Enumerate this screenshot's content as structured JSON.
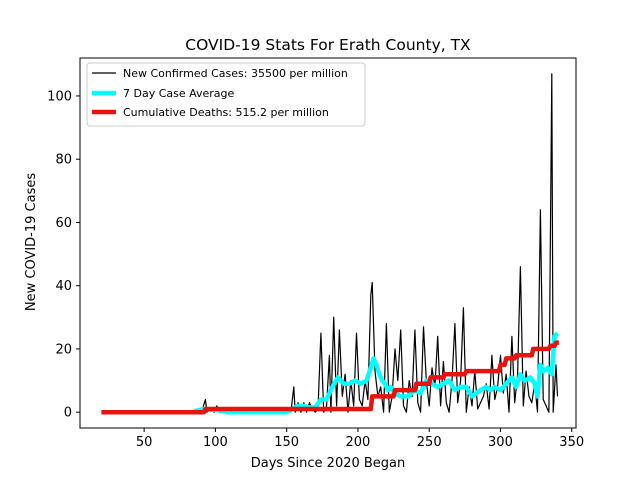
{
  "chart_data": {
    "type": "line",
    "title": "COVID-19 Stats For Erath County, TX",
    "xlabel": "Days Since 2020 Began",
    "ylabel": "New COVID-19 Cases",
    "xlim": [
      5,
      353
    ],
    "ylim": [
      -5,
      112
    ],
    "xticks": [
      50,
      100,
      150,
      200,
      250,
      300,
      350
    ],
    "yticks": [
      0,
      20,
      40,
      60,
      80,
      100
    ],
    "legend_position": "top-left",
    "grid": false,
    "series": [
      {
        "name": "New Confirmed Cases: 35500 per million",
        "color": "#000000",
        "line_width": 1.2,
        "points": [
          [
            20,
            0
          ],
          [
            85,
            0
          ],
          [
            87,
            1
          ],
          [
            89,
            0
          ],
          [
            90,
            0
          ],
          [
            91,
            1
          ],
          [
            93,
            4
          ],
          [
            94,
            0
          ],
          [
            97,
            1
          ],
          [
            99,
            0
          ],
          [
            101,
            2
          ],
          [
            103,
            0
          ],
          [
            107,
            0
          ],
          [
            109,
            1
          ],
          [
            111,
            0
          ],
          [
            114,
            1
          ],
          [
            116,
            0
          ],
          [
            150,
            0
          ],
          [
            153,
            0
          ],
          [
            155,
            8
          ],
          [
            156,
            0
          ],
          [
            158,
            3
          ],
          [
            160,
            0
          ],
          [
            162,
            3
          ],
          [
            164,
            0
          ],
          [
            166,
            3
          ],
          [
            168,
            1
          ],
          [
            170,
            0
          ],
          [
            172,
            1
          ],
          [
            174,
            25
          ],
          [
            176,
            0
          ],
          [
            178,
            2
          ],
          [
            180,
            18
          ],
          [
            181,
            0
          ],
          [
            183,
            30
          ],
          [
            185,
            2
          ],
          [
            187,
            26
          ],
          [
            189,
            5
          ],
          [
            191,
            12
          ],
          [
            193,
            0
          ],
          [
            195,
            10
          ],
          [
            197,
            2
          ],
          [
            199,
            25
          ],
          [
            201,
            4
          ],
          [
            203,
            2
          ],
          [
            205,
            10
          ],
          [
            207,
            4
          ],
          [
            209,
            37
          ],
          [
            210,
            41
          ],
          [
            212,
            13
          ],
          [
            214,
            5
          ],
          [
            216,
            8
          ],
          [
            218,
            0
          ],
          [
            220,
            28
          ],
          [
            222,
            0
          ],
          [
            224,
            5
          ],
          [
            226,
            20
          ],
          [
            228,
            10
          ],
          [
            230,
            26
          ],
          [
            232,
            2
          ],
          [
            234,
            0
          ],
          [
            236,
            10
          ],
          [
            238,
            5
          ],
          [
            240,
            26
          ],
          [
            242,
            3
          ],
          [
            244,
            0
          ],
          [
            246,
            27
          ],
          [
            248,
            10
          ],
          [
            250,
            2
          ],
          [
            252,
            14
          ],
          [
            254,
            8
          ],
          [
            256,
            24
          ],
          [
            258,
            2
          ],
          [
            260,
            16
          ],
          [
            262,
            3
          ],
          [
            264,
            0
          ],
          [
            266,
            10
          ],
          [
            268,
            28
          ],
          [
            270,
            3
          ],
          [
            272,
            10
          ],
          [
            274,
            33
          ],
          [
            276,
            0
          ],
          [
            278,
            8
          ],
          [
            280,
            2
          ],
          [
            282,
            13
          ],
          [
            284,
            1
          ],
          [
            286,
            3
          ],
          [
            288,
            5
          ],
          [
            290,
            9
          ],
          [
            292,
            1
          ],
          [
            294,
            18
          ],
          [
            296,
            4
          ],
          [
            298,
            8
          ],
          [
            300,
            18
          ],
          [
            302,
            6
          ],
          [
            304,
            12
          ],
          [
            306,
            0
          ],
          [
            308,
            24
          ],
          [
            310,
            3
          ],
          [
            312,
            12
          ],
          [
            314,
            46
          ],
          [
            316,
            2
          ],
          [
            318,
            13
          ],
          [
            320,
            5
          ],
          [
            322,
            3
          ],
          [
            324,
            9
          ],
          [
            326,
            0
          ],
          [
            328,
            64
          ],
          [
            330,
            4
          ],
          [
            332,
            2
          ],
          [
            334,
            0
          ],
          [
            336,
            107
          ],
          [
            337,
            0
          ],
          [
            339,
            15
          ],
          [
            340,
            5
          ]
        ]
      },
      {
        "name": "7 Day Case Average",
        "color": "#00ffff",
        "line_width": 4.5,
        "points": [
          [
            85,
            0.3
          ],
          [
            92,
            1
          ],
          [
            98,
            0.8
          ],
          [
            105,
            0.5
          ],
          [
            108,
            0
          ],
          [
            125,
            0
          ],
          [
            150,
            0
          ],
          [
            154,
            1
          ],
          [
            158,
            2
          ],
          [
            162,
            2
          ],
          [
            166,
            1.5
          ],
          [
            170,
            1.5
          ],
          [
            174,
            4
          ],
          [
            178,
            4
          ],
          [
            182,
            8
          ],
          [
            186,
            11
          ],
          [
            190,
            9
          ],
          [
            194,
            9
          ],
          [
            198,
            10
          ],
          [
            202,
            9
          ],
          [
            206,
            10
          ],
          [
            209,
            14
          ],
          [
            211,
            17
          ],
          [
            213,
            15
          ],
          [
            215,
            12
          ],
          [
            217,
            10
          ],
          [
            219,
            9
          ],
          [
            221,
            7
          ],
          [
            223,
            8
          ],
          [
            226,
            6
          ],
          [
            230,
            5
          ],
          [
            235,
            5
          ],
          [
            240,
            7
          ],
          [
            244,
            6
          ],
          [
            248,
            10
          ],
          [
            252,
            9
          ],
          [
            256,
            8
          ],
          [
            260,
            9
          ],
          [
            264,
            10
          ],
          [
            268,
            7
          ],
          [
            272,
            8
          ],
          [
            276,
            8
          ],
          [
            280,
            5
          ],
          [
            283,
            6
          ],
          [
            286,
            7
          ],
          [
            290,
            8
          ],
          [
            293,
            7
          ],
          [
            296,
            8
          ],
          [
            300,
            7
          ],
          [
            304,
            9
          ],
          [
            308,
            11
          ],
          [
            311,
            8
          ],
          [
            314,
            12
          ],
          [
            317,
            10
          ],
          [
            321,
            11
          ],
          [
            324,
            9
          ],
          [
            326,
            5
          ],
          [
            328,
            15
          ],
          [
            330,
            13
          ],
          [
            333,
            14
          ],
          [
            336,
            12
          ],
          [
            338,
            24
          ],
          [
            340,
            25
          ]
        ]
      },
      {
        "name": "Cumulative Deaths: 515.2 per million",
        "color": "#e8130f",
        "line_width": 4.5,
        "points": [
          [
            20,
            0
          ],
          [
            92,
            0
          ],
          [
            93,
            1
          ],
          [
            150,
            1
          ],
          [
            160,
            1
          ],
          [
            208,
            1
          ],
          [
            209,
            1
          ],
          [
            210,
            5
          ],
          [
            225,
            5
          ],
          [
            226,
            7
          ],
          [
            240,
            7
          ],
          [
            241,
            9
          ],
          [
            250,
            9
          ],
          [
            251,
            11
          ],
          [
            260,
            11
          ],
          [
            261,
            12
          ],
          [
            275,
            12
          ],
          [
            276,
            13
          ],
          [
            299,
            13
          ],
          [
            300,
            15
          ],
          [
            303,
            15
          ],
          [
            304,
            17
          ],
          [
            310,
            17
          ],
          [
            311,
            18
          ],
          [
            322,
            18
          ],
          [
            323,
            20
          ],
          [
            334,
            20
          ],
          [
            335,
            21
          ],
          [
            338,
            21
          ],
          [
            339,
            22
          ],
          [
            341,
            22
          ]
        ]
      }
    ]
  }
}
